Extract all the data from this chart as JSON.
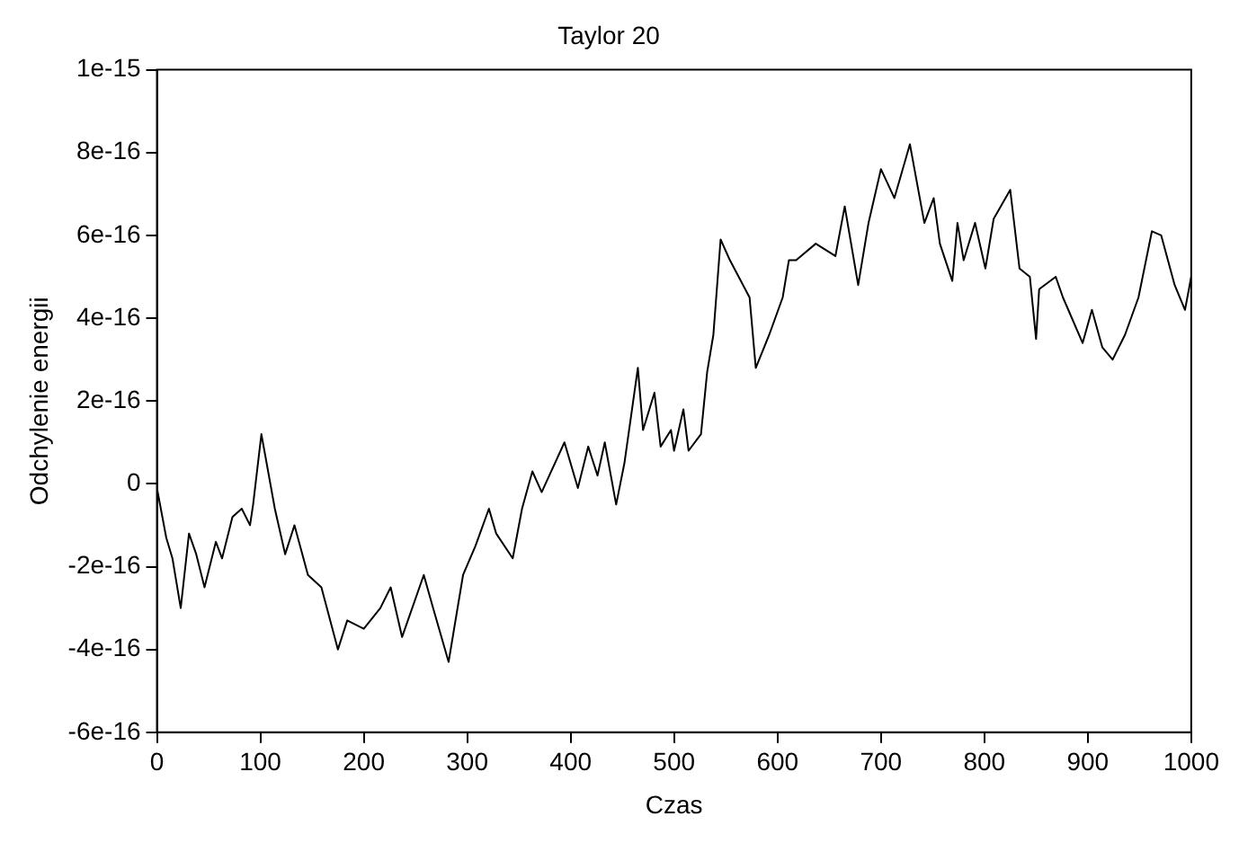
{
  "chart_data": {
    "type": "line",
    "title": "Taylor 20",
    "xlabel": "Czas",
    "ylabel": "Odchylenie energii",
    "x": [
      0,
      9,
      15,
      23,
      31,
      38,
      46,
      57,
      63,
      73,
      82,
      90,
      93,
      101,
      114,
      124,
      133,
      146,
      159,
      175,
      184,
      200,
      216,
      226,
      237,
      258,
      267,
      282,
      296,
      308,
      321,
      328,
      344,
      353,
      363,
      372,
      394,
      407,
      417,
      426,
      433,
      444,
      452,
      465,
      470,
      481,
      487,
      497,
      500,
      509,
      514,
      526,
      532,
      538,
      545,
      554,
      573,
      579,
      592,
      605,
      611,
      618,
      637,
      656,
      665,
      678,
      688,
      700,
      713,
      728,
      742,
      751,
      757,
      769,
      774,
      780,
      791,
      801,
      809,
      825,
      834,
      844,
      850,
      853,
      869,
      876,
      895,
      904,
      914,
      924,
      936,
      949,
      962,
      971,
      984,
      994,
      1000
    ],
    "series": [
      {
        "color": "#000000",
        "values": [
          -1e-17,
          -1.3e-16,
          -1.8e-16,
          -3e-16,
          -1.2e-16,
          -1.7e-16,
          -2.5e-16,
          -1.4e-16,
          -1.8e-16,
          -8e-17,
          -6e-17,
          -1e-16,
          -5e-17,
          1.2e-16,
          -6e-17,
          -1.7e-16,
          -1e-16,
          -2.2e-16,
          -2.5e-16,
          -4e-16,
          -3.3e-16,
          -3.5e-16,
          -3e-16,
          -2.5e-16,
          -3.7e-16,
          -2.2e-16,
          -3e-16,
          -4.3e-16,
          -2.2e-16,
          -1.5e-16,
          -6e-17,
          -1.2e-16,
          -1.8e-16,
          -6e-17,
          3e-17,
          -2e-17,
          1e-16,
          -1e-17,
          9e-17,
          2e-17,
          1e-16,
          -5e-17,
          5e-17,
          2.8e-16,
          1.3e-16,
          2.2e-16,
          9e-17,
          1.3e-16,
          8e-17,
          1.8e-16,
          8e-17,
          1.2e-16,
          2.7e-16,
          3.6e-16,
          5.9e-16,
          5.4e-16,
          4.5e-16,
          2.8e-16,
          3.6e-16,
          4.5e-16,
          5.4e-16,
          5.4e-16,
          5.8e-16,
          5.5e-16,
          6.7e-16,
          4.8e-16,
          6.3e-16,
          7.6e-16,
          6.9e-16,
          8.2e-16,
          6.3e-16,
          6.9e-16,
          5.8e-16,
          4.9e-16,
          6.3e-16,
          5.4e-16,
          6.3e-16,
          5.2e-16,
          6.4e-16,
          7.1e-16,
          5.2e-16,
          5e-16,
          3.5e-16,
          4.7e-16,
          5e-16,
          4.5e-16,
          3.4e-16,
          4.2e-16,
          3.3e-16,
          3e-16,
          3.6e-16,
          4.5e-16,
          6.1e-16,
          6e-16,
          4.8e-16,
          4.2e-16,
          5e-16
        ]
      }
    ],
    "xlim": [
      0,
      1000
    ],
    "xticks": [
      0,
      100,
      200,
      300,
      400,
      500,
      600,
      700,
      800,
      900,
      1000
    ],
    "ylim": [
      -6e-16,
      1e-15
    ],
    "yticks": [
      -6e-16,
      -4e-16,
      -2e-16,
      0,
      2e-16,
      4e-16,
      6e-16,
      8e-16,
      1e-15
    ],
    "marker": "none",
    "line_style": "solid"
  }
}
